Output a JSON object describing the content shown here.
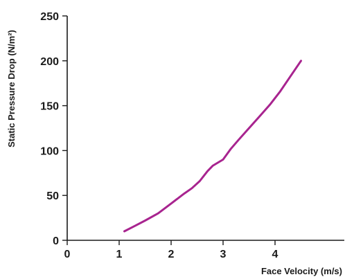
{
  "chart_data": {
    "type": "line",
    "title": "",
    "xlabel": "Face Velocity (m/s)",
    "ylabel": "Static Pressure Drop (N/m²)",
    "xlim": [
      0,
      5.2
    ],
    "ylim": [
      0,
      250
    ],
    "xticks": [
      0,
      1,
      2,
      3,
      4
    ],
    "yticks": [
      0,
      50,
      100,
      150,
      200,
      250
    ],
    "grid": false,
    "legend": "none",
    "series": [
      {
        "color": "#a8248f",
        "x": [
          1.1,
          1.3,
          1.5,
          1.75,
          2.0,
          2.25,
          2.4,
          2.55,
          2.7,
          2.8,
          3.0,
          3.15,
          3.3,
          3.5,
          3.7,
          3.9,
          4.1,
          4.3,
          4.5
        ],
        "y": [
          10,
          16,
          22,
          30,
          41,
          52,
          58,
          66,
          77,
          83,
          90,
          102,
          112,
          125,
          138,
          151,
          166,
          183,
          200
        ]
      }
    ]
  }
}
